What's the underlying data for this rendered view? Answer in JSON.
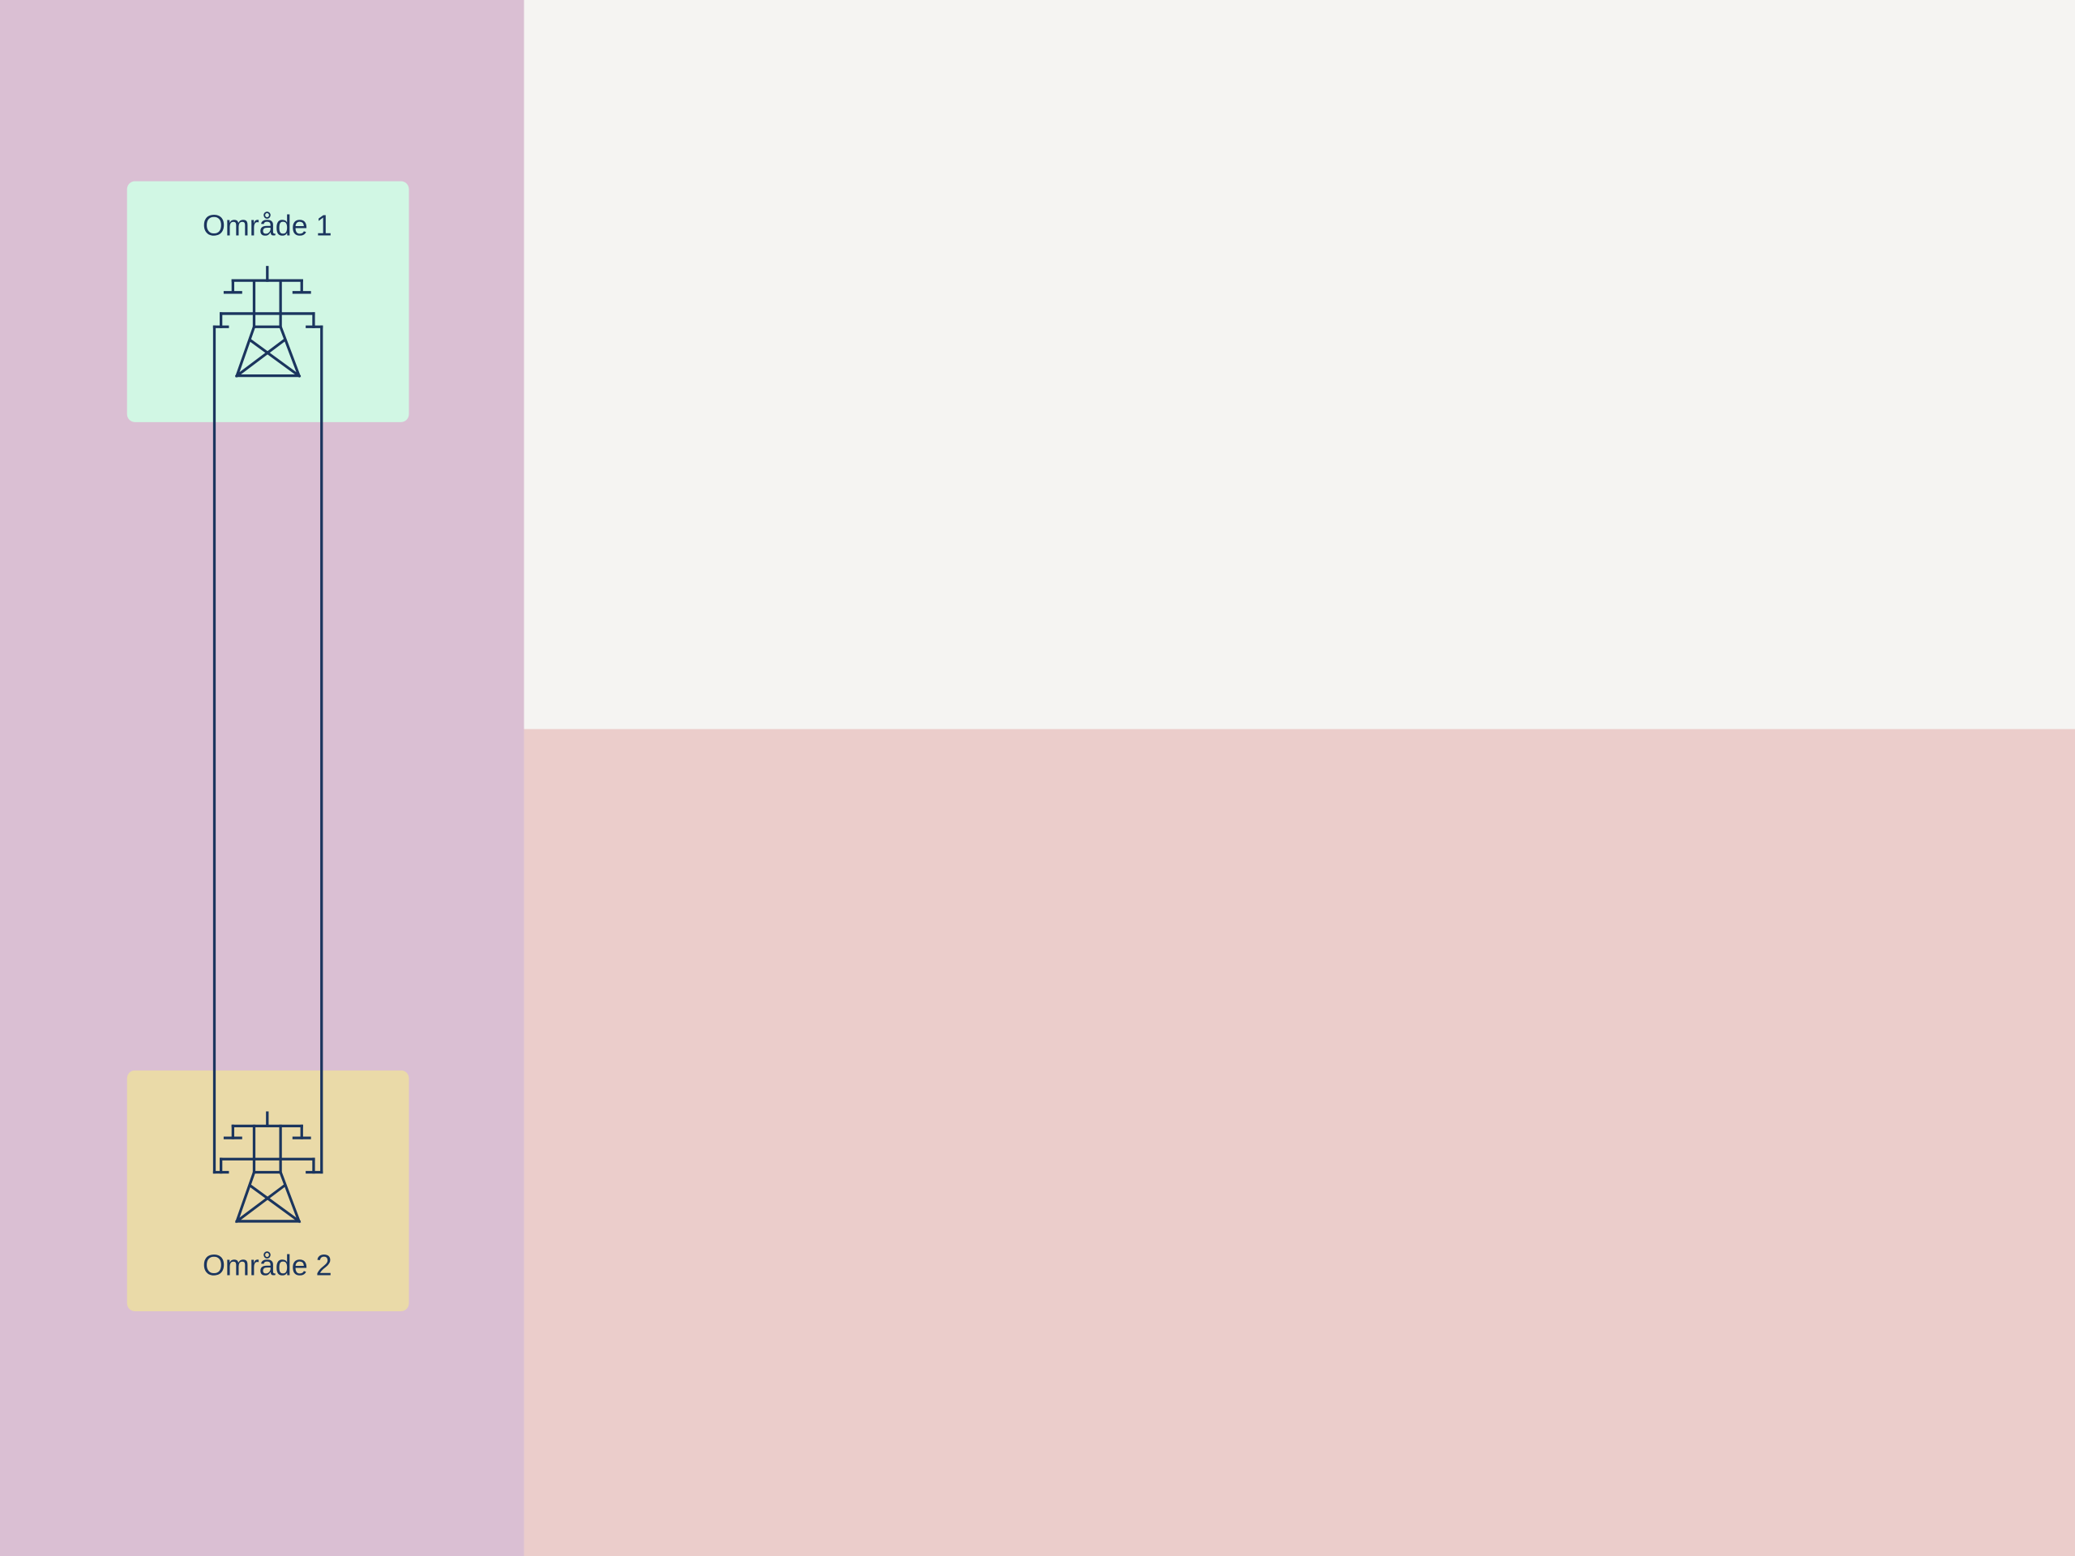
{
  "nodes": [
    {
      "label": "Område 1"
    },
    {
      "label": "Område 2"
    }
  ]
}
